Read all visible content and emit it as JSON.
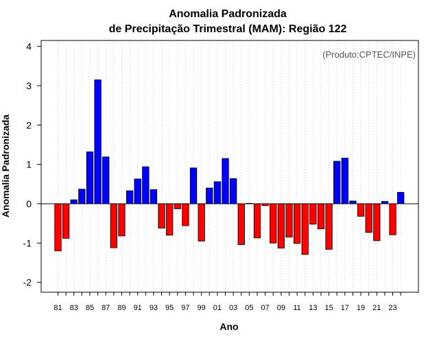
{
  "colors": {
    "positive": "#0000ff",
    "negative": "#ff0000",
    "bar_stroke": "#000000",
    "gridline": "#cccccc",
    "credit": "#555555"
  },
  "chart_data": {
    "type": "bar",
    "title_line1": "Anomalia Padronizada",
    "title_line2": "de Precipitação Trimestral (MAM): Região 122",
    "xlabel": "Ano",
    "ylabel": "Anomalia Padronizada",
    "credit": "(Produto:CPTEC/INPE)",
    "ylim": [
      -2.25,
      4.15
    ],
    "yticks": [
      -2,
      -1,
      0,
      1,
      2,
      3,
      4
    ],
    "grid": true,
    "categories": [
      "1981",
      "1982",
      "1983",
      "1984",
      "1985",
      "1986",
      "1987",
      "1988",
      "1989",
      "1990",
      "1991",
      "1992",
      "1993",
      "1994",
      "1995",
      "1996",
      "1997",
      "1998",
      "1999",
      "2000",
      "2001",
      "2002",
      "2003",
      "2004",
      "2005",
      "2006",
      "2007",
      "2008",
      "2009",
      "2010",
      "2011",
      "2012",
      "2013",
      "2014",
      "2015",
      "2016",
      "2017",
      "2018",
      "2019",
      "2020",
      "2021",
      "2022",
      "2023",
      "2024"
    ],
    "xtick_labels": [
      "81",
      "",
      "83",
      "",
      "85",
      "",
      "87",
      "",
      "89",
      "",
      "91",
      "",
      "93",
      "",
      "95",
      "",
      "97",
      "",
      "99",
      "",
      "01",
      "",
      "03",
      "",
      "05",
      "",
      "07",
      "",
      "09",
      "",
      "11",
      "",
      "13",
      "",
      "15",
      "",
      "17",
      "",
      "19",
      "",
      "21",
      "",
      "23",
      ""
    ],
    "values": [
      -1.2,
      -0.88,
      0.1,
      0.37,
      1.32,
      3.15,
      1.19,
      -1.12,
      -0.82,
      0.33,
      0.63,
      0.94,
      0.36,
      -0.62,
      -0.8,
      -0.13,
      -0.56,
      0.91,
      -0.95,
      0.4,
      0.56,
      1.15,
      0.64,
      -1.04,
      0.01,
      -0.87,
      -0.05,
      -1.0,
      -1.13,
      -0.85,
      -1.01,
      -1.29,
      -0.52,
      -0.64,
      -1.16,
      1.08,
      1.16,
      0.07,
      -0.32,
      -0.73,
      -0.94,
      0.06,
      -0.79,
      0.29
    ]
  }
}
